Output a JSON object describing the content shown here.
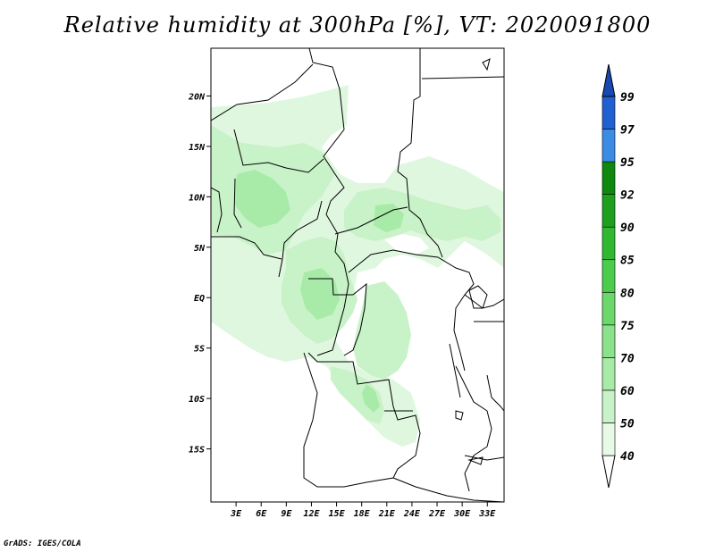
{
  "title": "Relative humidity at 300hPa [%], VT: 2020091800",
  "footer": "GrADS: IGES/COLA",
  "map": {
    "lon_range": [
      0,
      35
    ],
    "lat_range": [
      -20,
      25
    ],
    "lat_ticks": [
      {
        "value": 20,
        "label": "20N"
      },
      {
        "value": 15,
        "label": "15N"
      },
      {
        "value": 10,
        "label": "10N"
      },
      {
        "value": 5,
        "label": "5N"
      },
      {
        "value": 0,
        "label": "EQ"
      },
      {
        "value": -5,
        "label": "5S"
      },
      {
        "value": -10,
        "label": "10S"
      },
      {
        "value": -15,
        "label": "15S"
      }
    ],
    "lon_ticks": [
      {
        "value": 3,
        "label": "3E"
      },
      {
        "value": 6,
        "label": "6E"
      },
      {
        "value": 9,
        "label": "9E"
      },
      {
        "value": 12,
        "label": "12E"
      },
      {
        "value": 15,
        "label": "15E"
      },
      {
        "value": 18,
        "label": "18E"
      },
      {
        "value": 21,
        "label": "21E"
      },
      {
        "value": 24,
        "label": "24E"
      },
      {
        "value": 27,
        "label": "27E"
      },
      {
        "value": 30,
        "label": "30E"
      },
      {
        "value": 33,
        "label": "33E"
      }
    ]
  },
  "colorbar": {
    "levels": [
      "40",
      "50",
      "60",
      "70",
      "75",
      "80",
      "85",
      "90",
      "92",
      "95",
      "97",
      "99"
    ],
    "colors": [
      "#ffffff",
      "#e6fae6",
      "#c8f2c8",
      "#a8eaa8",
      "#8ae28a",
      "#6cd86c",
      "#4ccc4c",
      "#30b830",
      "#1ea01e",
      "#0e880e",
      "#3c8ce6",
      "#2060d0",
      "#1848b0"
    ]
  }
}
